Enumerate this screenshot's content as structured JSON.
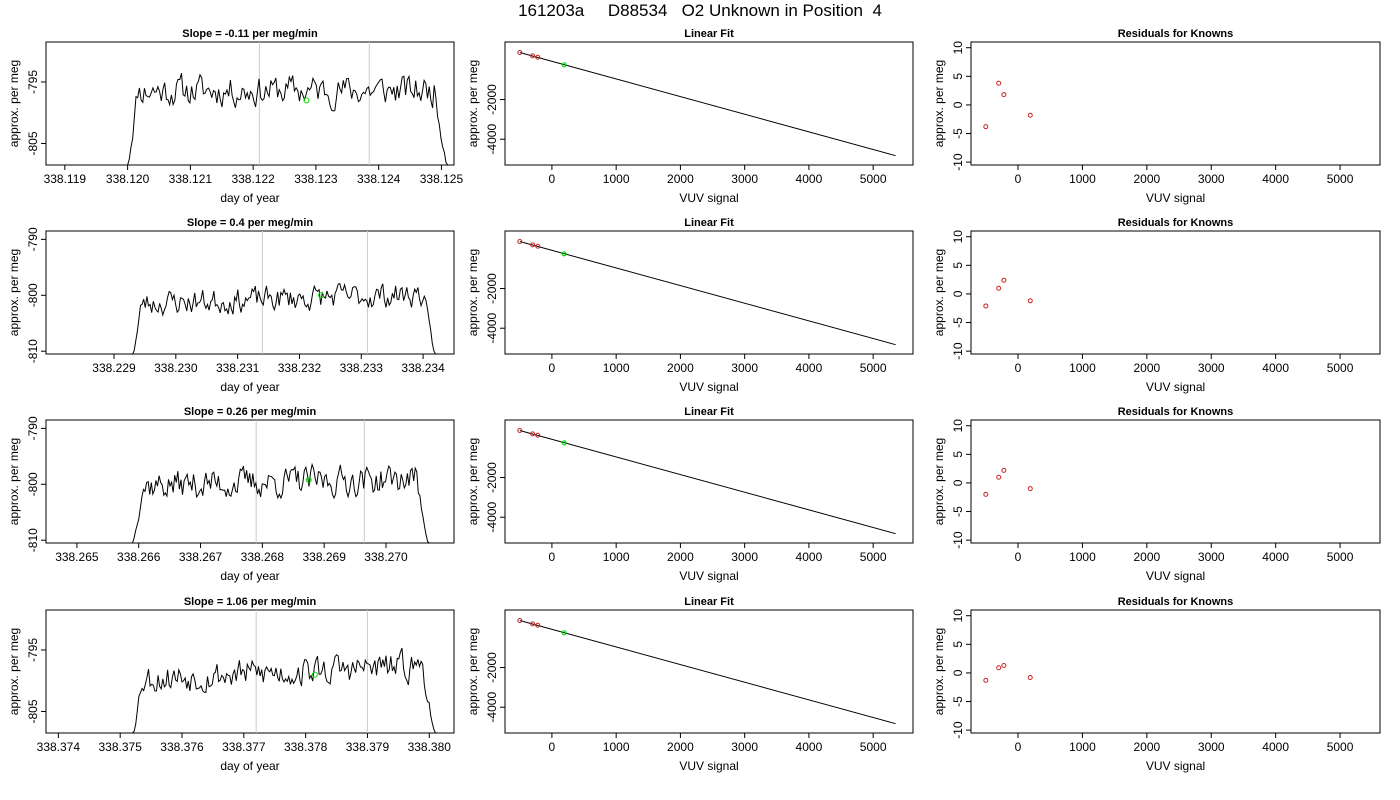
{
  "page": {
    "title": "161203a     D88534   O2 Unknown in Position  4"
  },
  "chart_data": [
    {
      "type": "line",
      "panel": "trace",
      "row": 0,
      "title": "Slope =  -0.11  per meg/min",
      "xlabel": "day of year",
      "ylabel": "approx. per meg",
      "xlim": [
        338.1187,
        338.1252
      ],
      "ylim": [
        -808.5,
        -788.5
      ],
      "xticks": [
        "338.119",
        "338.120",
        "338.121",
        "338.122",
        "338.123",
        "338.124",
        "338.125"
      ],
      "yticks": [
        "-805",
        "-795"
      ],
      "vlines": [
        338.1221,
        338.12385
      ],
      "line_start": 338.12,
      "line_end": 338.1251,
      "baseline": -796.4,
      "amplitude": 2.8,
      "seed": 11,
      "marker": {
        "x": 338.12285,
        "y": -798.0,
        "color": "#00dd00"
      }
    },
    {
      "type": "scatter",
      "panel": "fit",
      "row": 0,
      "title": "Linear Fit",
      "xlabel": "VUV signal",
      "ylabel": "approx. per meg",
      "xlim": [
        -730,
        5620
      ],
      "ylim": [
        -5300,
        900
      ],
      "xticks": [
        "0",
        "1000",
        "2000",
        "3000",
        "4000",
        "5000"
      ],
      "yticks": [
        "-4000",
        "-2000"
      ],
      "points": [
        [
          -500,
          370
        ],
        [
          -300,
          200
        ],
        [
          -220,
          130
        ]
      ],
      "unknown": [
        190,
        -250
      ],
      "line": [
        [
          -500,
          370
        ],
        [
          5350,
          -4830
        ]
      ]
    },
    {
      "type": "scatter",
      "panel": "residuals",
      "row": 0,
      "title": "Residuals for Knowns",
      "xlabel": "VUV signal",
      "ylabel": "approx. per meg",
      "xlim": [
        -730,
        5620
      ],
      "ylim": [
        -10.5,
        11
      ],
      "xticks": [
        "0",
        "1000",
        "2000",
        "3000",
        "4000",
        "5000"
      ],
      "yticks": [
        "-10",
        "-5",
        "0",
        "5",
        "10"
      ],
      "points": [
        [
          -500,
          -3.8
        ],
        [
          -300,
          3.8
        ],
        [
          -220,
          1.8
        ],
        [
          190,
          -1.8
        ]
      ]
    },
    {
      "type": "line",
      "panel": "trace",
      "row": 1,
      "title": "Slope =  0.4  per meg/min",
      "xlabel": "day of year",
      "ylabel": "approx. per meg",
      "xlim": [
        338.2279,
        338.2345
      ],
      "ylim": [
        -810.5,
        -788.5
      ],
      "xticks": [
        "338.229",
        "338.230",
        "338.231",
        "338.232",
        "338.233",
        "338.234"
      ],
      "yticks": [
        "-810",
        "-800",
        "-790"
      ],
      "vlines": [
        338.2314,
        338.2331
      ],
      "line_start": 338.2293,
      "line_end": 338.2342,
      "baseline": -800.6,
      "amplitude": 2.5,
      "trend": 0.7,
      "seed": 23,
      "marker": {
        "x": 338.23235,
        "y": -800.0,
        "color": "#00dd00"
      }
    },
    {
      "type": "scatter",
      "panel": "fit",
      "row": 1,
      "title": "Linear Fit",
      "xlabel": "VUV signal",
      "ylabel": "approx. per meg",
      "xlim": [
        -730,
        5620
      ],
      "ylim": [
        -5300,
        900
      ],
      "xticks": [
        "0",
        "1000",
        "2000",
        "3000",
        "4000",
        "5000"
      ],
      "yticks": [
        "-4000",
        "-2000"
      ],
      "points": [
        [
          -500,
          370
        ],
        [
          -300,
          200
        ],
        [
          -220,
          130
        ]
      ],
      "unknown": [
        190,
        -250
      ],
      "line": [
        [
          -500,
          370
        ],
        [
          5350,
          -4830
        ]
      ]
    },
    {
      "type": "scatter",
      "panel": "residuals",
      "row": 1,
      "title": "Residuals for Knowns",
      "xlabel": "VUV signal",
      "ylabel": "approx. per meg",
      "xlim": [
        -730,
        5620
      ],
      "ylim": [
        -10.5,
        11
      ],
      "xticks": [
        "0",
        "1000",
        "2000",
        "3000",
        "4000",
        "5000"
      ],
      "yticks": [
        "-10",
        "-5",
        "0",
        "5",
        "10"
      ],
      "points": [
        [
          -500,
          -2.1
        ],
        [
          -300,
          1.0
        ],
        [
          -220,
          2.4
        ],
        [
          190,
          -1.2
        ]
      ]
    },
    {
      "type": "line",
      "panel": "trace",
      "row": 2,
      "title": "Slope =  0.26  per meg/min",
      "xlabel": "day of year",
      "ylabel": "approx. per meg",
      "xlim": [
        338.2645,
        338.2711
      ],
      "ylim": [
        -810.5,
        -788.5
      ],
      "xticks": [
        "338.265",
        "338.266",
        "338.267",
        "338.268",
        "338.269",
        "338.270"
      ],
      "yticks": [
        "-810",
        "-800",
        "-790"
      ],
      "vlines": [
        338.2679,
        338.26965
      ],
      "line_start": 338.2659,
      "line_end": 338.2707,
      "baseline": -799.6,
      "amplitude": 3.0,
      "trend": 0.4,
      "seed": 37,
      "marker": {
        "x": 338.26875,
        "y": -799.2,
        "color": "#00dd00"
      }
    },
    {
      "type": "scatter",
      "panel": "fit",
      "row": 2,
      "title": "Linear Fit",
      "xlabel": "VUV signal",
      "ylabel": "approx. per meg",
      "xlim": [
        -730,
        5620
      ],
      "ylim": [
        -5300,
        900
      ],
      "xticks": [
        "0",
        "1000",
        "2000",
        "3000",
        "4000",
        "5000"
      ],
      "yticks": [
        "-4000",
        "-2000"
      ],
      "points": [
        [
          -500,
          370
        ],
        [
          -300,
          200
        ],
        [
          -220,
          130
        ]
      ],
      "unknown": [
        190,
        -250
      ],
      "line": [
        [
          -500,
          370
        ],
        [
          5350,
          -4830
        ]
      ]
    },
    {
      "type": "scatter",
      "panel": "residuals",
      "row": 2,
      "title": "Residuals for Knowns",
      "xlabel": "VUV signal",
      "ylabel": "approx. per meg",
      "xlim": [
        -730,
        5620
      ],
      "ylim": [
        -10.5,
        11
      ],
      "xticks": [
        "0",
        "1000",
        "2000",
        "3000",
        "4000",
        "5000"
      ],
      "yticks": [
        "-10",
        "-5",
        "0",
        "5",
        "10"
      ],
      "points": [
        [
          -500,
          -2.0
        ],
        [
          -300,
          1.0
        ],
        [
          -220,
          2.2
        ],
        [
          190,
          -1.0
        ]
      ]
    },
    {
      "type": "line",
      "panel": "trace",
      "row": 3,
      "title": "Slope =  1.06  per meg/min",
      "xlabel": "day of year",
      "ylabel": "approx. per meg",
      "xlim": [
        338.3738,
        338.3804
      ],
      "ylim": [
        -808.5,
        -788.5
      ],
      "xticks": [
        "338.374",
        "338.375",
        "338.376",
        "338.377",
        "338.378",
        "338.379",
        "338.380"
      ],
      "yticks": [
        "-805",
        "-795"
      ],
      "vlines": [
        338.3772,
        338.379
      ],
      "line_start": 338.3752,
      "line_end": 338.3801,
      "baseline": -798.6,
      "amplitude": 2.7,
      "trend": 0.8,
      "seed": 53,
      "marker": {
        "x": 338.37815,
        "y": -799.0,
        "color": "#00dd00"
      }
    },
    {
      "type": "scatter",
      "panel": "fit",
      "row": 3,
      "title": "Linear Fit",
      "xlabel": "VUV signal",
      "ylabel": "approx. per meg",
      "xlim": [
        -730,
        5620
      ],
      "ylim": [
        -5300,
        900
      ],
      "xticks": [
        "0",
        "1000",
        "2000",
        "3000",
        "4000",
        "5000"
      ],
      "yticks": [
        "-4000",
        "-2000"
      ],
      "points": [
        [
          -500,
          370
        ],
        [
          -300,
          200
        ],
        [
          -220,
          130
        ]
      ],
      "unknown": [
        190,
        -250
      ],
      "line": [
        [
          -500,
          370
        ],
        [
          5350,
          -4830
        ]
      ]
    },
    {
      "type": "scatter",
      "panel": "residuals",
      "row": 3,
      "title": "Residuals for Knowns",
      "xlabel": "VUV signal",
      "ylabel": "approx. per meg",
      "xlim": [
        -730,
        5620
      ],
      "ylim": [
        -10.5,
        11
      ],
      "xticks": [
        "0",
        "1000",
        "2000",
        "3000",
        "4000",
        "5000"
      ],
      "yticks": [
        "-10",
        "-5",
        "0",
        "5",
        "10"
      ],
      "points": [
        [
          -500,
          -1.3
        ],
        [
          -300,
          0.9
        ],
        [
          -220,
          1.3
        ],
        [
          190,
          -0.8
        ]
      ]
    }
  ],
  "colors": {
    "known_point": "#cc2222",
    "unknown_point": "#00dd00",
    "fit_line": "#000000",
    "vline": "#cccccc"
  }
}
